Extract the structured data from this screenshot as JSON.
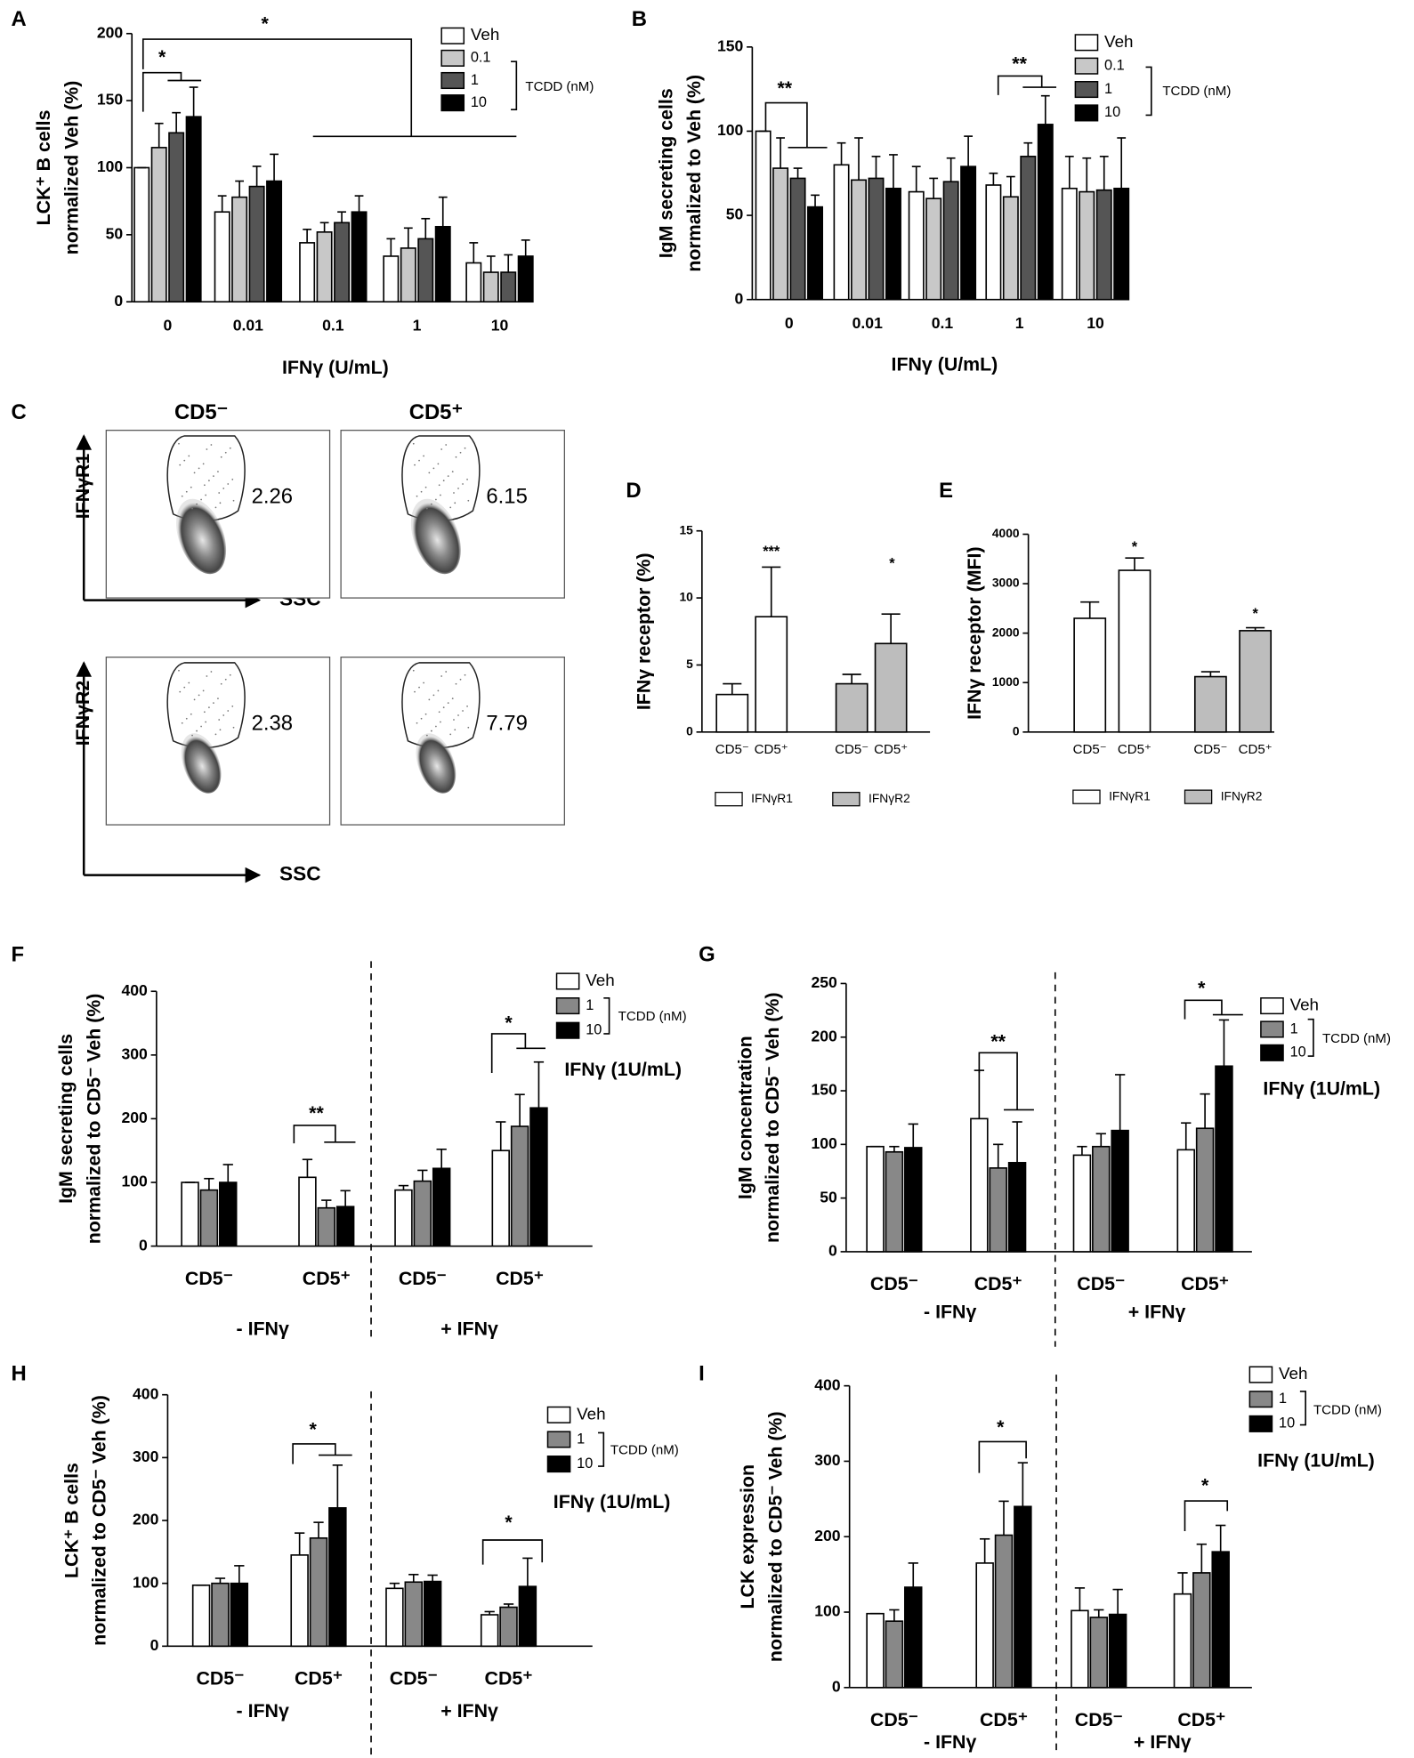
{
  "chart_data": [
    {
      "panel": "A",
      "type": "bar",
      "ylabel": [
        "LCK⁺ B cells",
        "normalized Veh (%)"
      ],
      "xlabel": "IFNγ (U/mL)",
      "categories": [
        "0",
        "0.01",
        "0.1",
        "1",
        "10"
      ],
      "series": [
        {
          "name": "Veh",
          "color": "#ffffff",
          "values": [
            100,
            67,
            44,
            34,
            29
          ],
          "errors": [
            0,
            12,
            10,
            13,
            15
          ]
        },
        {
          "name": "0.1",
          "color": "#c8c8c8",
          "values": [
            115,
            78,
            52,
            40,
            22
          ],
          "errors": [
            18,
            12,
            7,
            15,
            12
          ]
        },
        {
          "name": "1",
          "color": "#555555",
          "values": [
            126,
            86,
            59,
            47,
            22
          ],
          "errors": [
            15,
            15,
            8,
            15,
            13
          ]
        },
        {
          "name": "10",
          "color": "#000000",
          "values": [
            138,
            90,
            67,
            56,
            34
          ],
          "errors": [
            22,
            20,
            12,
            22,
            12
          ]
        }
      ],
      "legend_title": "TCDD (nM)",
      "ylim": [
        0,
        200
      ],
      "yticks": [
        0,
        50,
        100,
        150,
        200
      ],
      "annotations": [
        "*",
        "*"
      ]
    },
    {
      "panel": "B",
      "type": "bar",
      "ylabel": [
        "IgM secreting cells",
        "normalized to Veh (%)"
      ],
      "xlabel": "IFNγ (U/mL)",
      "categories": [
        "0",
        "0.01",
        "0.1",
        "1",
        "10"
      ],
      "series": [
        {
          "name": "Veh",
          "color": "#ffffff",
          "values": [
            100,
            80,
            64,
            68,
            66
          ],
          "errors": [
            0,
            13,
            15,
            7,
            19
          ]
        },
        {
          "name": "0.1",
          "color": "#c8c8c8",
          "values": [
            78,
            71,
            60,
            61,
            64
          ],
          "errors": [
            18,
            25,
            12,
            12,
            20
          ]
        },
        {
          "name": "1",
          "color": "#555555",
          "values": [
            72,
            72,
            70,
            85,
            65
          ],
          "errors": [
            6,
            13,
            14,
            8,
            20
          ]
        },
        {
          "name": "10",
          "color": "#000000",
          "values": [
            55,
            66,
            79,
            104,
            66
          ],
          "errors": [
            7,
            20,
            18,
            17,
            30
          ]
        }
      ],
      "legend_title": "TCDD (nM)",
      "ylim": [
        0,
        150
      ],
      "yticks": [
        0,
        50,
        100,
        150
      ],
      "annotations": [
        "**",
        "**"
      ]
    },
    {
      "panel": "C",
      "type": "flow",
      "columns": [
        "CD5⁻",
        "CD5⁺"
      ],
      "rows": [
        "IFNγR1",
        "IFNγR2"
      ],
      "xlabel": "SSC",
      "gates": [
        [
          2.26,
          6.15
        ],
        [
          2.38,
          7.79
        ]
      ]
    },
    {
      "panel": "D",
      "type": "pairs",
      "ylabel": [
        "IFNγ receptor (%)"
      ],
      "categories": [
        "CD5⁻",
        "CD5⁺"
      ],
      "series": [
        {
          "name": "IFNγR1",
          "color": "#ffffff",
          "values": [
            2.8,
            8.6
          ],
          "errors": [
            0.8,
            3.7
          ]
        },
        {
          "name": "IFNγR2",
          "color": "#bdbdbd",
          "values": [
            3.6,
            6.6
          ],
          "errors": [
            0.7,
            2.2
          ]
        }
      ],
      "ylim": [
        0,
        15
      ],
      "yticks": [
        0,
        5,
        10,
        15
      ],
      "annotations": [
        "***",
        "*"
      ]
    },
    {
      "panel": "E",
      "type": "pairs",
      "ylabel": [
        "IFNγ receptor (MFI)"
      ],
      "categories": [
        "CD5⁻",
        "CD5⁺"
      ],
      "series": [
        {
          "name": "IFNγR1",
          "color": "#ffffff",
          "values": [
            2300,
            3270
          ],
          "errors": [
            330,
            250
          ]
        },
        {
          "name": "IFNγR2",
          "color": "#bdbdbd",
          "values": [
            1120,
            2050
          ],
          "errors": [
            100,
            60
          ]
        }
      ],
      "ylim": [
        0,
        4000
      ],
      "yticks": [
        0,
        1000,
        2000,
        3000,
        4000
      ],
      "annotations": [
        "*",
        "*"
      ]
    },
    {
      "panel": "F",
      "type": "bar",
      "ylabel": [
        "IgM secreting cells",
        "normalized to CD5⁻ Veh (%)"
      ],
      "categories": [
        "CD5⁻",
        "CD5⁺",
        "CD5⁻",
        "CD5⁺"
      ],
      "groups": [
        "- IFNγ",
        "+ IFNγ"
      ],
      "series": [
        {
          "name": "Veh",
          "color": "#ffffff",
          "values": [
            100,
            108,
            88,
            150
          ],
          "errors": [
            0,
            28,
            7,
            45
          ]
        },
        {
          "name": "1",
          "color": "#888888",
          "values": [
            88,
            60,
            102,
            188
          ],
          "errors": [
            18,
            12,
            17,
            50
          ]
        },
        {
          "name": "10",
          "color": "#000000",
          "values": [
            100,
            62,
            122,
            217
          ],
          "errors": [
            28,
            25,
            30,
            72
          ]
        }
      ],
      "legend_title": "TCDD (nM)",
      "note": "IFNγ (1U/mL)",
      "ylim": [
        0,
        400
      ],
      "yticks": [
        0,
        100,
        200,
        300,
        400
      ],
      "annotations": [
        "**",
        "*"
      ]
    },
    {
      "panel": "G",
      "type": "bar",
      "ylabel": [
        "IgM concentration",
        "normalized to CD5⁻ Veh (%)"
      ],
      "categories": [
        "CD5⁻",
        "CD5⁺",
        "CD5⁻",
        "CD5⁺"
      ],
      "groups": [
        "- IFNγ",
        "+ IFNγ"
      ],
      "series": [
        {
          "name": "Veh",
          "color": "#ffffff",
          "values": [
            98,
            124,
            90,
            95
          ],
          "errors": [
            0,
            45,
            8,
            25
          ]
        },
        {
          "name": "1",
          "color": "#888888",
          "values": [
            93,
            78,
            98,
            115
          ],
          "errors": [
            5,
            22,
            12,
            32
          ]
        },
        {
          "name": "10",
          "color": "#000000",
          "values": [
            97,
            83,
            113,
            173
          ],
          "errors": [
            22,
            38,
            52,
            43
          ]
        }
      ],
      "legend_title": "TCDD (nM)",
      "note": "IFNγ (1U/mL)",
      "ylim": [
        0,
        250
      ],
      "yticks": [
        0,
        50,
        100,
        150,
        200,
        250
      ],
      "annotations": [
        "**",
        "*"
      ]
    },
    {
      "panel": "H",
      "type": "bar",
      "ylabel": [
        "LCK⁺ B cells",
        "normalized to CD5⁻ Veh (%)"
      ],
      "categories": [
        "CD5⁻",
        "CD5⁺",
        "CD5⁻",
        "CD5⁺"
      ],
      "groups": [
        "- IFNγ",
        "+ IFNγ"
      ],
      "series": [
        {
          "name": "Veh",
          "color": "#ffffff",
          "values": [
            97,
            145,
            92,
            50
          ],
          "errors": [
            0,
            35,
            8,
            5
          ]
        },
        {
          "name": "1",
          "color": "#888888",
          "values": [
            100,
            172,
            102,
            62
          ],
          "errors": [
            8,
            25,
            12,
            5
          ]
        },
        {
          "name": "10",
          "color": "#000000",
          "values": [
            100,
            220,
            103,
            95
          ],
          "errors": [
            28,
            68,
            10,
            45
          ]
        }
      ],
      "legend_title": "TCDD (nM)",
      "note": "IFNγ (1U/mL)",
      "ylim": [
        0,
        400
      ],
      "yticks": [
        0,
        100,
        200,
        300,
        400
      ],
      "annotations": [
        "*",
        "*"
      ]
    },
    {
      "panel": "I",
      "type": "bar",
      "ylabel": [
        "LCK expression",
        "normalized to CD5⁻ Veh (%)"
      ],
      "categories": [
        "CD5⁻",
        "CD5⁺",
        "CD5⁻",
        "CD5⁺"
      ],
      "groups": [
        "- IFNγ",
        "+ IFNγ"
      ],
      "series": [
        {
          "name": "Veh",
          "color": "#ffffff",
          "values": [
            98,
            165,
            102,
            124
          ],
          "errors": [
            0,
            32,
            30,
            28
          ]
        },
        {
          "name": "1",
          "color": "#888888",
          "values": [
            88,
            202,
            93,
            152
          ],
          "errors": [
            15,
            45,
            10,
            38
          ]
        },
        {
          "name": "10",
          "color": "#000000",
          "values": [
            133,
            240,
            97,
            180
          ],
          "errors": [
            32,
            58,
            33,
            35
          ]
        }
      ],
      "legend_title": "TCDD (nM)",
      "note": "IFNγ (1U/mL)",
      "ylim": [
        0,
        400
      ],
      "yticks": [
        0,
        100,
        200,
        300,
        400
      ],
      "annotations": [
        "*",
        "*"
      ]
    }
  ]
}
